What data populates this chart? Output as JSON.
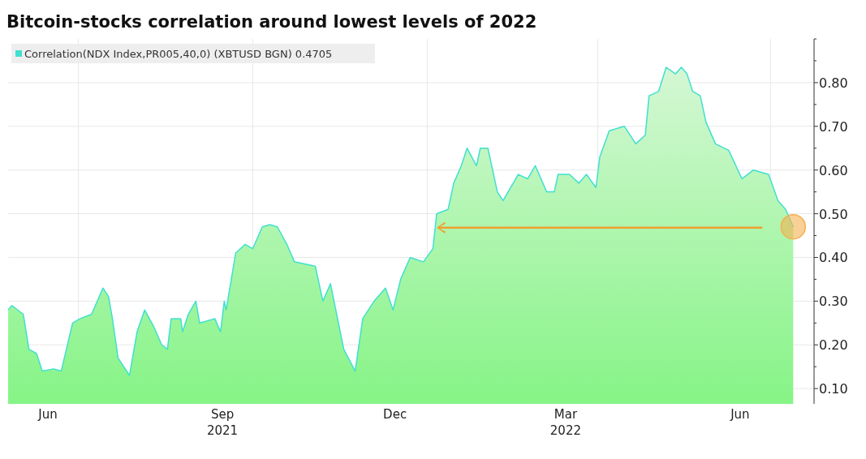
{
  "chart_data": {
    "type": "area",
    "title": "Bitcoin-stocks correlation around lowest levels of 2022",
    "legend": "top left",
    "grid": true,
    "xlim": [
      "2021-05-25",
      "2022-07-24"
    ],
    "xticks": [
      {
        "value": "2021-06-15",
        "label": "Jun"
      },
      {
        "value": "2021-07-01",
        "label": null
      },
      {
        "value": "2021-09-15",
        "label": "Sep\n2021"
      },
      {
        "value": "2021-10-01",
        "label": null
      },
      {
        "value": "2021-12-15",
        "label": "Dec"
      },
      {
        "value": "2022-01-01",
        "label": null
      },
      {
        "value": "2022-03-15",
        "label": "Mar\n2022"
      },
      {
        "value": "2022-04-01",
        "label": null
      },
      {
        "value": "2022-06-15",
        "label": "Jun"
      },
      {
        "value": "2022-07-01",
        "label": null
      }
    ],
    "ylim": [
      0.065,
      0.9
    ],
    "yticks": [
      {
        "value": 0.1,
        "label": "0.10"
      },
      {
        "value": 0.15,
        "label": null
      },
      {
        "value": 0.2,
        "label": "0.20"
      },
      {
        "value": 0.25,
        "label": null
      },
      {
        "value": 0.3,
        "label": "0.30"
      },
      {
        "value": 0.35,
        "label": null
      },
      {
        "value": 0.4,
        "label": "0.40"
      },
      {
        "value": 0.45,
        "label": null
      },
      {
        "value": 0.5,
        "label": "0.50"
      },
      {
        "value": 0.55,
        "label": null
      },
      {
        "value": 0.6,
        "label": "0.60"
      },
      {
        "value": 0.65,
        "label": null
      },
      {
        "value": 0.7,
        "label": "0.70"
      },
      {
        "value": 0.75,
        "label": null
      },
      {
        "value": 0.8,
        "label": "0.80"
      },
      {
        "value": 0.85,
        "label": null
      },
      {
        "value": 0.9,
        "label": null
      }
    ],
    "x": [
      "2021-05-25",
      "2021-05-27",
      "2021-06-02",
      "2021-06-05",
      "2021-06-09",
      "2021-06-12",
      "2021-06-18",
      "2021-06-22",
      "2021-06-28",
      "2021-07-02",
      "2021-07-08",
      "2021-07-14",
      "2021-07-17",
      "2021-07-19",
      "2021-07-22",
      "2021-07-28",
      "2021-08-01",
      "2021-08-05",
      "2021-08-10",
      "2021-08-14",
      "2021-08-17",
      "2021-08-19",
      "2021-08-24",
      "2021-08-25",
      "2021-08-28",
      "2021-09-01",
      "2021-09-03",
      "2021-09-11",
      "2021-09-14",
      "2021-09-16",
      "2021-09-17",
      "2021-09-22",
      "2021-09-27",
      "2021-10-01",
      "2021-10-06",
      "2021-10-10",
      "2021-10-14",
      "2021-10-19",
      "2021-10-23",
      "2021-11-03",
      "2021-11-07",
      "2021-11-11",
      "2021-11-18",
      "2021-11-24",
      "2021-11-28",
      "2021-12-04",
      "2021-12-10",
      "2021-12-14",
      "2021-12-18",
      "2021-12-23",
      "2021-12-30",
      "2022-01-04",
      "2022-01-06",
      "2022-01-12",
      "2022-01-15",
      "2022-01-19",
      "2022-01-22",
      "2022-01-27",
      "2022-01-29",
      "2022-02-02",
      "2022-02-07",
      "2022-02-10",
      "2022-02-18",
      "2022-02-23",
      "2022-02-27",
      "2022-03-05",
      "2022-03-09",
      "2022-03-11",
      "2022-03-17",
      "2022-03-22",
      "2022-03-26",
      "2022-03-31",
      "2022-04-02",
      "2022-04-07",
      "2022-04-15",
      "2022-04-21",
      "2022-04-26",
      "2022-04-28",
      "2022-05-03",
      "2022-05-07",
      "2022-05-12",
      "2022-05-15",
      "2022-05-18",
      "2022-05-21",
      "2022-05-25",
      "2022-05-28",
      "2022-06-02",
      "2022-06-09",
      "2022-06-16",
      "2022-06-22",
      "2022-06-30",
      "2022-07-05",
      "2022-07-09",
      "2022-07-13"
    ],
    "series": [
      {
        "name": "Correlation(NDX Index,PR005,40,0) (XBTUSD BGN) 0.4705",
        "color": "#40e0d0",
        "values": [
          0.28,
          0.29,
          0.27,
          0.19,
          0.18,
          0.14,
          0.145,
          0.14,
          0.25,
          0.26,
          0.27,
          0.33,
          0.31,
          0.26,
          0.17,
          0.13,
          0.23,
          0.28,
          0.24,
          0.2,
          0.19,
          0.26,
          0.26,
          0.23,
          0.27,
          0.3,
          0.25,
          0.26,
          0.23,
          0.3,
          0.28,
          0.41,
          0.43,
          0.42,
          0.47,
          0.475,
          0.47,
          0.43,
          0.39,
          0.38,
          0.3,
          0.34,
          0.19,
          0.14,
          0.26,
          0.3,
          0.33,
          0.28,
          0.35,
          0.4,
          0.39,
          0.42,
          0.5,
          0.51,
          0.57,
          0.61,
          0.65,
          0.61,
          0.65,
          0.65,
          0.55,
          0.53,
          0.59,
          0.58,
          0.61,
          0.55,
          0.55,
          0.59,
          0.59,
          0.57,
          0.59,
          0.56,
          0.63,
          0.69,
          0.7,
          0.66,
          0.68,
          0.77,
          0.78,
          0.835,
          0.82,
          0.835,
          0.82,
          0.78,
          0.77,
          0.71,
          0.66,
          0.645,
          0.58,
          0.6,
          0.59,
          0.53,
          0.51,
          0.47
        ]
      }
    ]
  }
}
